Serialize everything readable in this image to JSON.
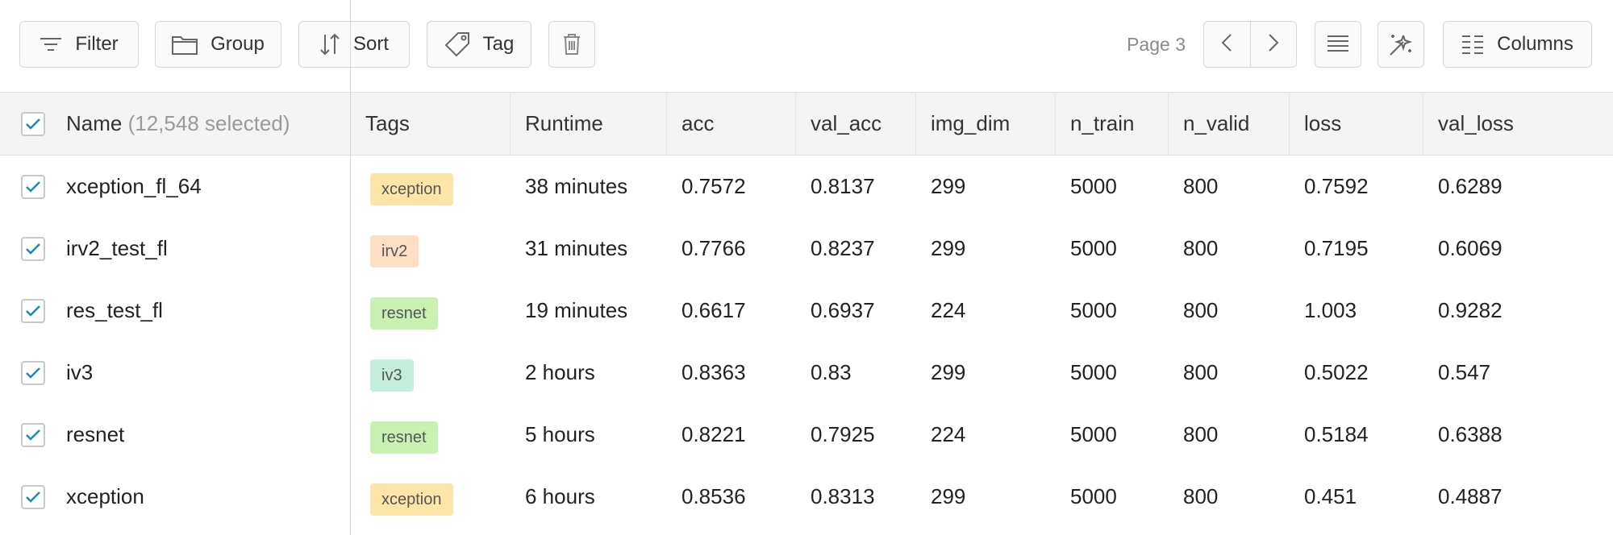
{
  "toolbar": {
    "filter_label": "Filter",
    "group_label": "Group",
    "sort_label": "Sort",
    "tag_label": "Tag",
    "page_label": "Page 3",
    "columns_label": "Columns"
  },
  "table": {
    "header": {
      "name": "Name",
      "selected": "(12,548 selected)",
      "columns": [
        "Tags",
        "Runtime",
        "acc",
        "val_acc",
        "img_dim",
        "n_train",
        "n_valid",
        "loss",
        "val_loss"
      ]
    },
    "rows": [
      {
        "name": "xception_fl_64",
        "tag": "xception",
        "runtime": "38 minutes",
        "acc": "0.7572",
        "val_acc": "0.8137",
        "img_dim": "299",
        "n_train": "5000",
        "n_valid": "800",
        "loss": "0.7592",
        "val_loss": "0.6289"
      },
      {
        "name": "irv2_test_fl",
        "tag": "irv2",
        "runtime": "31 minutes",
        "acc": "0.7766",
        "val_acc": "0.8237",
        "img_dim": "299",
        "n_train": "5000",
        "n_valid": "800",
        "loss": "0.7195",
        "val_loss": "0.6069"
      },
      {
        "name": "res_test_fl",
        "tag": "resnet",
        "runtime": "19 minutes",
        "acc": "0.6617",
        "val_acc": "0.6937",
        "img_dim": "224",
        "n_train": "5000",
        "n_valid": "800",
        "loss": "1.003",
        "val_loss": "0.9282"
      },
      {
        "name": "iv3",
        "tag": "iv3",
        "runtime": "2 hours",
        "acc": "0.8363",
        "val_acc": "0.83",
        "img_dim": "299",
        "n_train": "5000",
        "n_valid": "800",
        "loss": "0.5022",
        "val_loss": "0.547"
      },
      {
        "name": "resnet",
        "tag": "resnet",
        "runtime": "5 hours",
        "acc": "0.8221",
        "val_acc": "0.7925",
        "img_dim": "224",
        "n_train": "5000",
        "n_valid": "800",
        "loss": "0.5184",
        "val_loss": "0.6388"
      },
      {
        "name": "xception",
        "tag": "xception",
        "runtime": "6 hours",
        "acc": "0.8536",
        "val_acc": "0.8313",
        "img_dim": "299",
        "n_train": "5000",
        "n_valid": "800",
        "loss": "0.451",
        "val_loss": "0.4887"
      }
    ]
  },
  "tag_colors": {
    "xception": "#fde5a8",
    "irv2": "#fde0c4",
    "resnet": "#c9f2b2",
    "iv3": "#c4efdc"
  },
  "colors": {
    "checkbox_check": "#1a8cb5",
    "header_bg": "#f4f4f4",
    "border": "#d6d6d6"
  },
  "icons": {
    "filter": "filter-icon",
    "group": "folder-icon",
    "sort": "sort-arrows-icon",
    "tag": "tag-icon",
    "delete": "trash-icon",
    "prev": "chevron-left-icon",
    "next": "chevron-right-icon",
    "density": "lines-icon",
    "auto": "magic-wand-icon",
    "columns": "columns-icon"
  }
}
